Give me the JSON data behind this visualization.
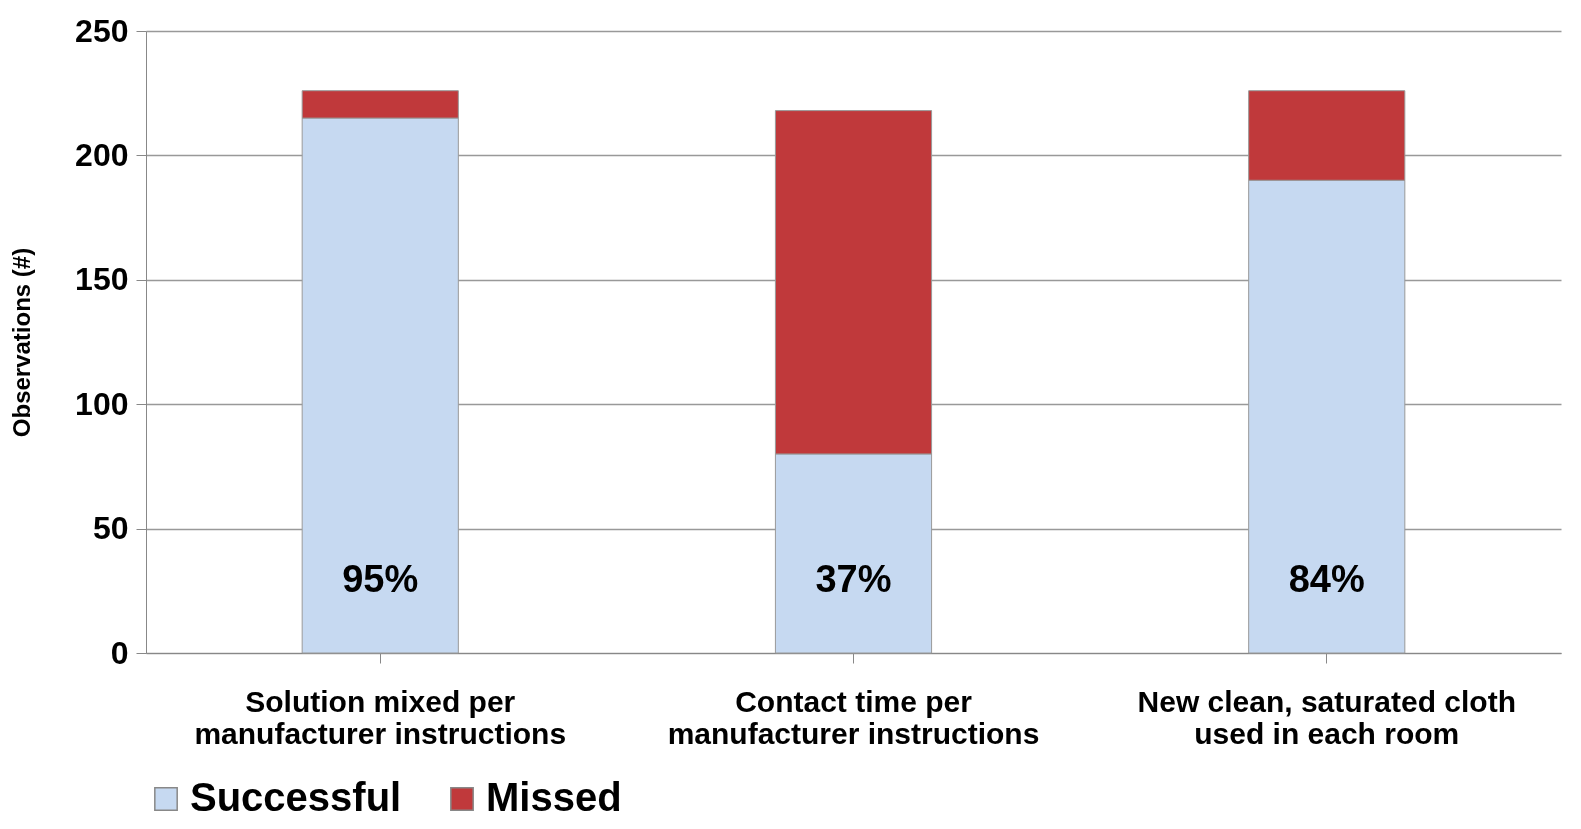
{
  "chart_data": {
    "type": "bar",
    "stacked": true,
    "ylabel": "Observations (#)",
    "categories": [
      "Solution mixed per manufacturer instructions",
      "Contact time per manufacturer instructions",
      "New clean, saturated cloth used in each room"
    ],
    "series": [
      {
        "name": "Successful",
        "color": "#c6d9f1",
        "values": [
          215,
          80,
          190
        ]
      },
      {
        "name": "Missed",
        "color": "#c0393b",
        "values": [
          11,
          138,
          36
        ]
      }
    ],
    "annotations": [
      "95%",
      "37%",
      "84%"
    ],
    "ylim": [
      0,
      250
    ],
    "yticks": [
      0,
      50,
      100,
      150,
      200,
      250
    ],
    "grid": "y",
    "legend": "bottom"
  }
}
